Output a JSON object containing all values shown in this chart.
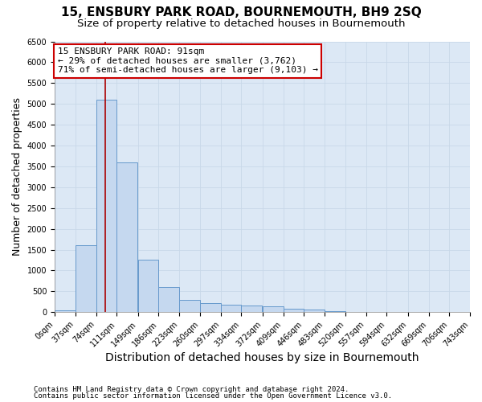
{
  "title": "15, ENSBURY PARK ROAD, BOURNEMOUTH, BH9 2SQ",
  "subtitle": "Size of property relative to detached houses in Bournemouth",
  "xlabel": "Distribution of detached houses by size in Bournemouth",
  "ylabel": "Number of detached properties",
  "footer1": "Contains HM Land Registry data © Crown copyright and database right 2024.",
  "footer2": "Contains public sector information licensed under the Open Government Licence v3.0.",
  "bin_edges": [
    0,
    37,
    74,
    111,
    149,
    186,
    223,
    260,
    297,
    334,
    372,
    409,
    446,
    483,
    520,
    557,
    594,
    632,
    669,
    706,
    743
  ],
  "bin_labels": [
    "0sqm",
    "37sqm",
    "74sqm",
    "111sqm",
    "149sqm",
    "186sqm",
    "223sqm",
    "260sqm",
    "297sqm",
    "334sqm",
    "372sqm",
    "409sqm",
    "446sqm",
    "483sqm",
    "520sqm",
    "557sqm",
    "594sqm",
    "632sqm",
    "669sqm",
    "706sqm",
    "743sqm"
  ],
  "bar_heights": [
    40,
    1600,
    5100,
    3600,
    1250,
    600,
    300,
    225,
    175,
    150,
    130,
    80,
    60,
    30,
    10,
    10,
    10,
    5,
    5,
    5
  ],
  "bar_color": "#c5d8ef",
  "bar_edgecolor": "#6699cc",
  "bar_linewidth": 0.7,
  "property_sqm": 91,
  "property_line_color": "#aa0000",
  "annotation_line1": "15 ENSBURY PARK ROAD: 91sqm",
  "annotation_line2": "← 29% of detached houses are smaller (3,762)",
  "annotation_line3": "71% of semi-detached houses are larger (9,103) →",
  "annotation_boxcolor": "white",
  "annotation_edgecolor": "#cc0000",
  "ylim": [
    0,
    6500
  ],
  "yticks": [
    0,
    500,
    1000,
    1500,
    2000,
    2500,
    3000,
    3500,
    4000,
    4500,
    5000,
    5500,
    6000,
    6500
  ],
  "grid_color": "#c8d8e8",
  "bg_color": "#dce8f5",
  "title_fontsize": 11,
  "subtitle_fontsize": 9.5,
  "axis_label_fontsize": 9,
  "tick_fontsize": 7,
  "annotation_fontsize": 8,
  "footer_fontsize": 6.5
}
